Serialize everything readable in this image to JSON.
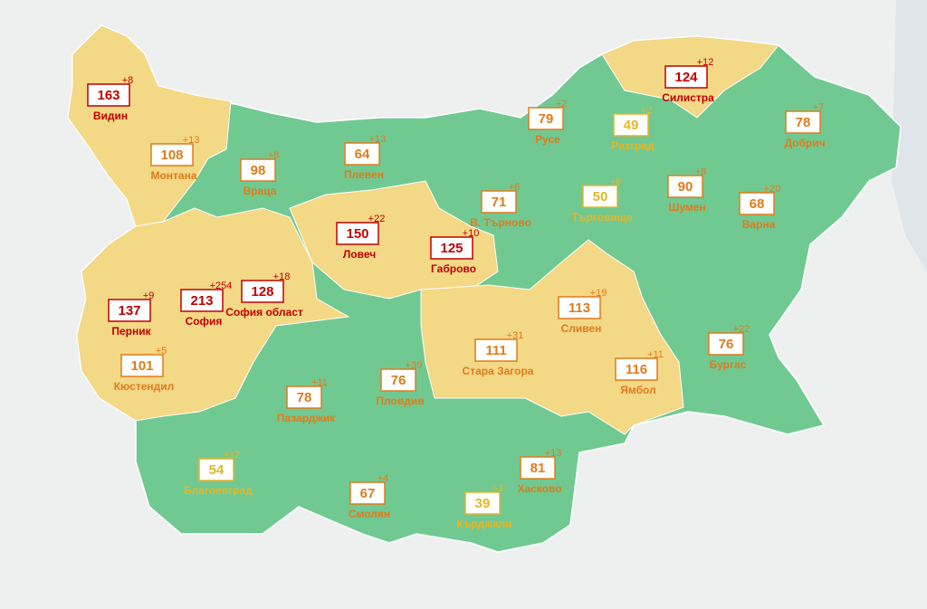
{
  "map": {
    "regions": [
      {
        "name": "Видин",
        "value": 163,
        "change": "+8",
        "color": "#c00000"
      },
      {
        "name": "Монтана",
        "value": 108,
        "change": "+13",
        "color": "#e07b1a"
      },
      {
        "name": "Враца",
        "value": 98,
        "change": "+8",
        "color": "#e07b1a"
      },
      {
        "name": "Плевен",
        "value": 64,
        "change": "+13",
        "color": "#e07b1a"
      },
      {
        "name": "Ловеч",
        "value": 150,
        "change": "+22",
        "color": "#c00000"
      },
      {
        "name": "Габрово",
        "value": 125,
        "change": "+10",
        "color": "#c00000"
      },
      {
        "name": "В. Търново",
        "value": 71,
        "change": "+6",
        "color": "#e07b1a"
      },
      {
        "name": "Русе",
        "value": 79,
        "change": "+2",
        "color": "#e07b1a"
      },
      {
        "name": "Разград",
        "value": 49,
        "change": "+2",
        "color": "#e5b626"
      },
      {
        "name": "Силистра",
        "value": 124,
        "change": "+12",
        "color": "#c00000"
      },
      {
        "name": "Добрич",
        "value": 78,
        "change": "+7",
        "color": "#e07b1a"
      },
      {
        "name": "Търговище",
        "value": 50,
        "change": "+6",
        "color": "#e5b626"
      },
      {
        "name": "Шумен",
        "value": 90,
        "change": "+8",
        "color": "#e07b1a"
      },
      {
        "name": "Варна",
        "value": 68,
        "change": "+20",
        "color": "#e07b1a"
      },
      {
        "name": "София",
        "value": 213,
        "change": "+254",
        "color": "#c00000"
      },
      {
        "name": "София област",
        "value": 128,
        "change": "+18",
        "color": "#c00000"
      },
      {
        "name": "Перник",
        "value": 137,
        "change": "+9",
        "color": "#c00000"
      },
      {
        "name": "Кюстендил",
        "value": 101,
        "change": "+5",
        "color": "#e07b1a"
      },
      {
        "name": "Пазарджик",
        "value": 78,
        "change": "+11",
        "color": "#e07b1a"
      },
      {
        "name": "Пловдив",
        "value": 76,
        "change": "+39",
        "color": "#e07b1a"
      },
      {
        "name": "Стара Загора",
        "value": 111,
        "change": "+31",
        "color": "#e07b1a"
      },
      {
        "name": "Сливен",
        "value": 113,
        "change": "+19",
        "color": "#e07b1a"
      },
      {
        "name": "Ямбол",
        "value": 116,
        "change": "+11",
        "color": "#e07b1a"
      },
      {
        "name": "Бургас",
        "value": 76,
        "change": "+22",
        "color": "#e07b1a"
      },
      {
        "name": "Хасково",
        "value": 81,
        "change": "+13",
        "color": "#e07b1a"
      },
      {
        "name": "Кърджали",
        "value": 39,
        "change": "+3",
        "color": "#e5b626"
      },
      {
        "name": "Смолян",
        "value": 67,
        "change": "+4",
        "color": "#e07b1a"
      },
      {
        "name": "Благоевград",
        "value": 54,
        "change": "+12",
        "color": "#e5b626"
      }
    ]
  }
}
